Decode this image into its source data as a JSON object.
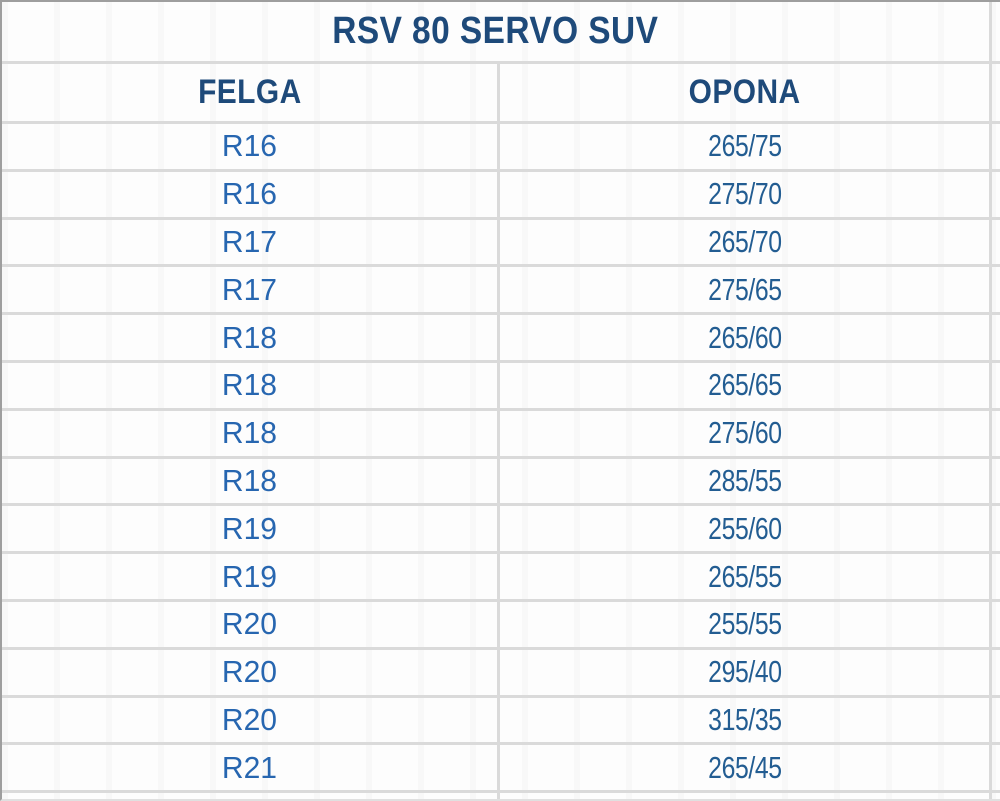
{
  "title": "RSV 80 SERVO SUV",
  "table": {
    "columns": [
      {
        "key": "felga",
        "label": "FELGA"
      },
      {
        "key": "opona",
        "label": "OPONA"
      }
    ],
    "rows": [
      {
        "felga": "R16",
        "opona": "265/75"
      },
      {
        "felga": "R16",
        "opona": "275/70"
      },
      {
        "felga": "R17",
        "opona": "265/70"
      },
      {
        "felga": "R17",
        "opona": "275/65"
      },
      {
        "felga": "R18",
        "opona": "265/60"
      },
      {
        "felga": "R18",
        "opona": "265/65"
      },
      {
        "felga": "R18",
        "opona": "275/60"
      },
      {
        "felga": "R18",
        "opona": "285/55"
      },
      {
        "felga": "R19",
        "opona": "255/60"
      },
      {
        "felga": "R19",
        "opona": "265/55"
      },
      {
        "felga": "R20",
        "opona": "255/55"
      },
      {
        "felga": "R20",
        "opona": "295/40"
      },
      {
        "felga": "R20",
        "opona": "315/35"
      },
      {
        "felga": "R21",
        "opona": "265/45"
      }
    ]
  },
  "chart_data": {
    "type": "table",
    "title": "RSV 80 SERVO SUV",
    "columns": [
      "FELGA",
      "OPONA"
    ],
    "rows": [
      [
        "R16",
        "265/75"
      ],
      [
        "R16",
        "275/70"
      ],
      [
        "R17",
        "265/70"
      ],
      [
        "R17",
        "275/65"
      ],
      [
        "R18",
        "265/60"
      ],
      [
        "R18",
        "265/65"
      ],
      [
        "R18",
        "275/60"
      ],
      [
        "R18",
        "285/55"
      ],
      [
        "R19",
        "255/60"
      ],
      [
        "R19",
        "265/55"
      ],
      [
        "R20",
        "255/55"
      ],
      [
        "R20",
        "295/40"
      ],
      [
        "R20",
        "315/35"
      ],
      [
        "R21",
        "265/45"
      ]
    ]
  },
  "colors": {
    "heading_color": "#1e4a7a",
    "felga_color": "#2766b0",
    "opona_color": "#235d92",
    "gridline": "#dadada",
    "outer_border": "#9e9e9e",
    "bg": "#fdfdfd"
  }
}
